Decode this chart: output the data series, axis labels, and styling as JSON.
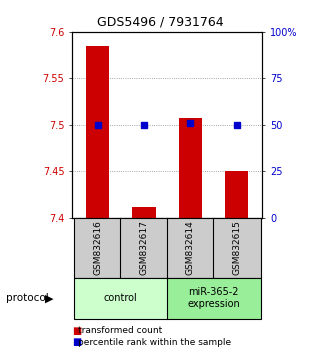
{
  "title": "GDS5496 / 7931764",
  "samples": [
    "GSM832616",
    "GSM832617",
    "GSM832614",
    "GSM832615"
  ],
  "bar_values": [
    7.585,
    7.412,
    7.507,
    7.45
  ],
  "bar_base": 7.4,
  "percentile_values": [
    50.0,
    50.0,
    51.0,
    50.0
  ],
  "ylim_left": [
    7.4,
    7.6
  ],
  "ylim_right": [
    0,
    100
  ],
  "left_ticks": [
    7.4,
    7.45,
    7.5,
    7.55,
    7.6
  ],
  "right_ticks": [
    0,
    25,
    50,
    75,
    100
  ],
  "right_tick_labels": [
    "0",
    "25",
    "50",
    "75",
    "100%"
  ],
  "bar_color": "#cc0000",
  "percentile_color": "#0000cc",
  "groups": [
    {
      "label": "control",
      "samples": [
        0,
        1
      ],
      "color": "#ccffcc"
    },
    {
      "label": "miR-365-2\nexpression",
      "samples": [
        2,
        3
      ],
      "color": "#99ee99"
    }
  ],
  "sample_box_color": "#cccccc",
  "background_color": "#ffffff",
  "dotted_line_color": "#888888",
  "bar_width": 0.5,
  "legend_items": [
    {
      "color": "#cc0000",
      "label": "transformed count"
    },
    {
      "color": "#0000cc",
      "label": "percentile rank within the sample"
    }
  ]
}
